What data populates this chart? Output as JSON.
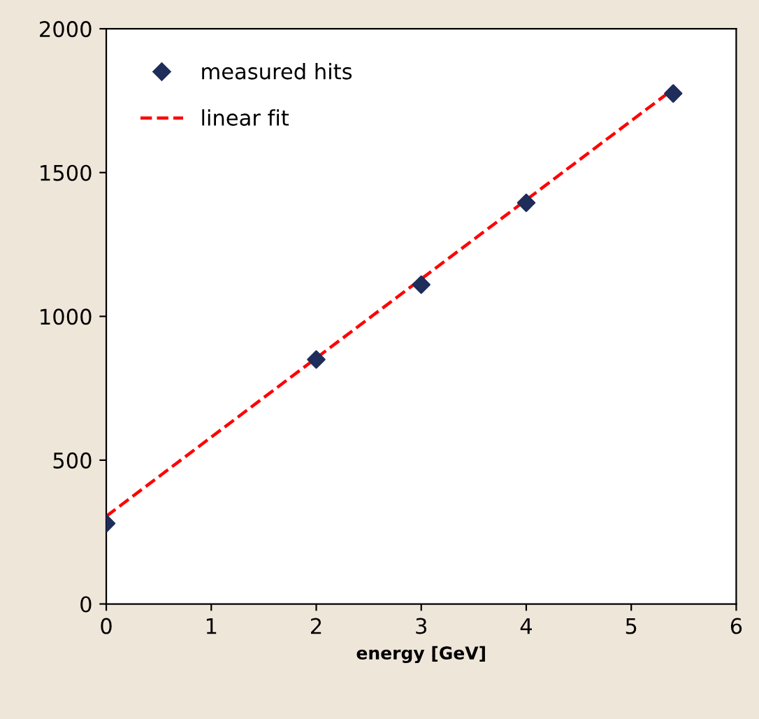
{
  "chart_data": {
    "type": "scatter",
    "xlabel": "energy [GeV]",
    "xlim": [
      0,
      6
    ],
    "ylim": [
      0,
      2000
    ],
    "xticks": [
      0,
      1,
      2,
      3,
      4,
      5,
      6
    ],
    "yticks": [
      0,
      500,
      1000,
      1500,
      2000
    ],
    "grid": false,
    "legend": "top left",
    "series": [
      {
        "name": "measured hits",
        "color": "#1f2d5a",
        "marker": "diamond",
        "x": [
          0,
          2,
          3,
          4,
          5.4
        ],
        "values": [
          280,
          850,
          1110,
          1395,
          1775
        ]
      },
      {
        "name": "linear fit",
        "type": "line",
        "color": "#ff0000",
        "line_style": "dashed",
        "marker": "none",
        "x": [
          0,
          5.4
        ],
        "values": [
          305,
          1790
        ]
      }
    ]
  }
}
